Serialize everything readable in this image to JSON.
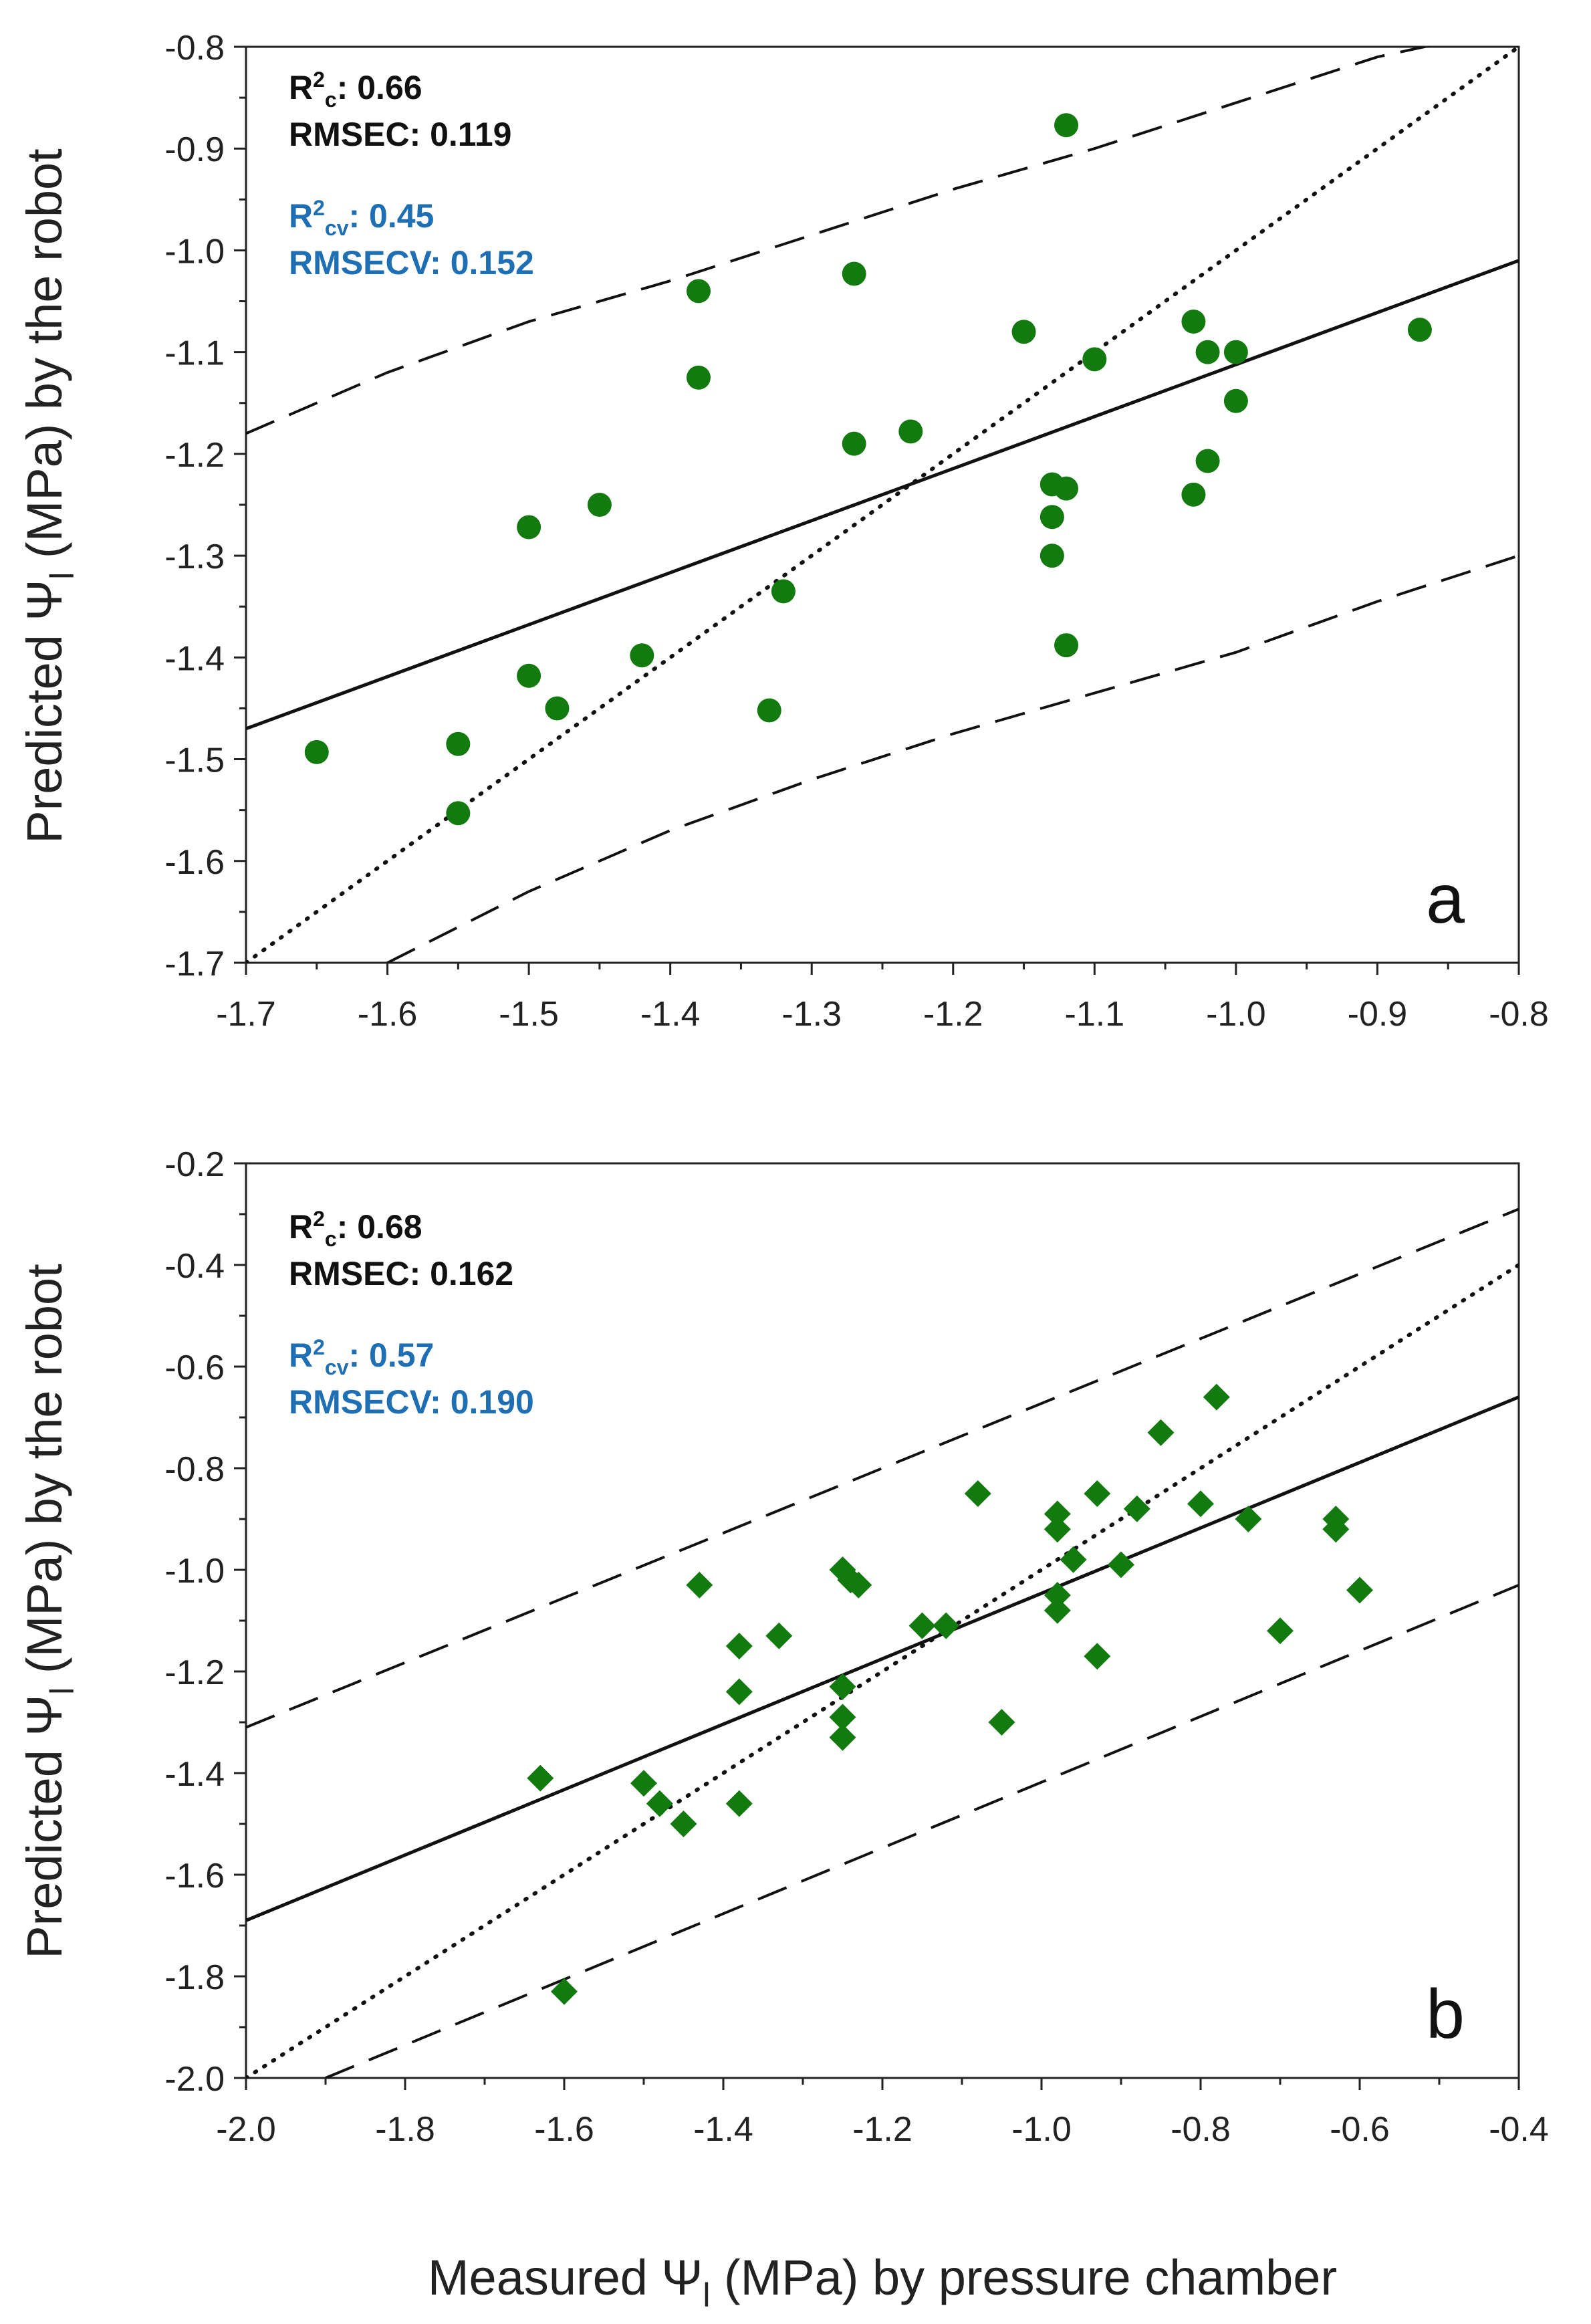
{
  "figure": {
    "shared_xlabel_main": "Measured Ψ",
    "shared_xlabel_sub": "l",
    "shared_xlabel_rest": " (MPa) by pressure chamber",
    "ylabel_main": "Predicted Ψ",
    "ylabel_sub": "l",
    "ylabel_rest": " (MPa) by the robot"
  },
  "colors": {
    "points": "#127a0e",
    "cv_text": "#1f6fb4",
    "stat_text": "#111111",
    "axis": "#222222"
  },
  "chart_data": [
    {
      "type": "scatter",
      "panel_label": "a",
      "marker": "circle",
      "xlim": [
        -1.7,
        -0.8
      ],
      "ylim": [
        -1.7,
        -0.8
      ],
      "xticks": [
        -1.7,
        -1.6,
        -1.5,
        -1.4,
        -1.3,
        -1.2,
        -1.1,
        -1.0,
        -0.9,
        -0.8
      ],
      "yticks": [
        -1.7,
        -1.6,
        -1.5,
        -1.4,
        -1.3,
        -1.2,
        -1.1,
        -1.0,
        -0.9,
        -0.8
      ],
      "xtick_labels": [
        "-1.7",
        "-1.6",
        "-1.5",
        "-1.4",
        "-1.3",
        "-1.2",
        "-1.1",
        "-1.0",
        "-0.9",
        "-0.8"
      ],
      "ytick_labels": [
        "-1.7",
        "-1.6",
        "-1.5",
        "-1.4",
        "-1.3",
        "-1.2",
        "-1.1",
        "-1.0",
        "-0.9",
        "-0.8"
      ],
      "stats": {
        "r2c_label": "R",
        "r2c_sup": "2",
        "r2c_sub": "c",
        "r2c_value": ": 0.66",
        "rmsec": "RMSEC: 0.119",
        "r2cv_label": "R",
        "r2cv_sup": "2",
        "r2cv_sub": "cv",
        "r2cv_value": ": 0.45",
        "rmsecv": "RMSECV: 0.152"
      },
      "regression_line": [
        [
          -1.7,
          -1.47
        ],
        [
          -0.8,
          -1.01
        ]
      ],
      "identity_line": [
        [
          -1.7,
          -1.7
        ],
        [
          -0.8,
          -0.8
        ]
      ],
      "upper_band": [
        [
          -1.7,
          -1.18
        ],
        [
          -1.6,
          -1.12
        ],
        [
          -1.5,
          -1.07
        ],
        [
          -1.4,
          -1.03
        ],
        [
          -1.3,
          -0.985
        ],
        [
          -1.2,
          -0.94
        ],
        [
          -1.1,
          -0.9
        ],
        [
          -1.0,
          -0.855
        ],
        [
          -0.9,
          -0.81
        ],
        [
          -0.85,
          -0.795
        ]
      ],
      "lower_band": [
        [
          -1.6,
          -1.7
        ],
        [
          -1.5,
          -1.63
        ],
        [
          -1.4,
          -1.57
        ],
        [
          -1.3,
          -1.52
        ],
        [
          -1.2,
          -1.475
        ],
        [
          -1.1,
          -1.435
        ],
        [
          -1.0,
          -1.395
        ],
        [
          -0.9,
          -1.345
        ],
        [
          -0.8,
          -1.3
        ]
      ],
      "points": [
        {
          "x": -1.65,
          "y": -1.493
        },
        {
          "x": -1.55,
          "y": -1.485
        },
        {
          "x": -1.55,
          "y": -1.553
        },
        {
          "x": -1.5,
          "y": -1.272
        },
        {
          "x": -1.5,
          "y": -1.418
        },
        {
          "x": -1.48,
          "y": -1.45
        },
        {
          "x": -1.45,
          "y": -1.25
        },
        {
          "x": -1.42,
          "y": -1.398
        },
        {
          "x": -1.38,
          "y": -1.04
        },
        {
          "x": -1.38,
          "y": -1.125
        },
        {
          "x": -1.33,
          "y": -1.452
        },
        {
          "x": -1.32,
          "y": -1.335
        },
        {
          "x": -1.27,
          "y": -1.023
        },
        {
          "x": -1.27,
          "y": -1.19
        },
        {
          "x": -1.23,
          "y": -1.178
        },
        {
          "x": -1.15,
          "y": -1.08
        },
        {
          "x": -1.13,
          "y": -1.23
        },
        {
          "x": -1.13,
          "y": -1.262
        },
        {
          "x": -1.13,
          "y": -1.3
        },
        {
          "x": -1.12,
          "y": -0.877
        },
        {
          "x": -1.12,
          "y": -1.234
        },
        {
          "x": -1.12,
          "y": -1.388
        },
        {
          "x": -1.1,
          "y": -1.107
        },
        {
          "x": -1.03,
          "y": -1.07
        },
        {
          "x": -1.03,
          "y": -1.24
        },
        {
          "x": -1.02,
          "y": -1.1
        },
        {
          "x": -1.02,
          "y": -1.207
        },
        {
          "x": -1.0,
          "y": -1.1
        },
        {
          "x": -1.0,
          "y": -1.148
        },
        {
          "x": -0.87,
          "y": -1.078
        }
      ]
    },
    {
      "type": "scatter",
      "panel_label": "b",
      "marker": "diamond",
      "xlim": [
        -2.0,
        -0.4
      ],
      "ylim": [
        -2.0,
        -0.2
      ],
      "xticks": [
        -2.0,
        -1.8,
        -1.6,
        -1.4,
        -1.2,
        -1.0,
        -0.8,
        -0.6,
        -0.4
      ],
      "yticks": [
        -2.0,
        -1.8,
        -1.6,
        -1.4,
        -1.2,
        -1.0,
        -0.8,
        -0.6,
        -0.4,
        -0.2
      ],
      "xtick_labels": [
        "-2.0",
        "-1.8",
        "-1.6",
        "-1.4",
        "-1.2",
        "-1.0",
        "-0.8",
        "-0.6",
        "-0.4"
      ],
      "ytick_labels": [
        "-2.0",
        "-1.8",
        "-1.6",
        "-1.4",
        "-1.2",
        "-1.0",
        "-0.8",
        "-0.6",
        "-0.4",
        "-0.2"
      ],
      "stats": {
        "r2c_label": "R",
        "r2c_sup": "2",
        "r2c_sub": "c",
        "r2c_value": ": 0.68",
        "rmsec": "RMSEC: 0.162",
        "r2cv_label": "R",
        "r2cv_sup": "2",
        "r2cv_sub": "cv",
        "r2cv_value": ": 0.57",
        "rmsecv": "RMSECV: 0.190"
      },
      "regression_line": [
        [
          -2.0,
          -1.69
        ],
        [
          -0.4,
          -0.66
        ]
      ],
      "identity_line": [
        [
          -2.0,
          -2.0
        ],
        [
          -0.4,
          -0.4
        ]
      ],
      "upper_band": [
        [
          -2.0,
          -1.31
        ],
        [
          -0.4,
          -0.29
        ]
      ],
      "lower_band": [
        [
          -1.9,
          -2.0
        ],
        [
          -0.4,
          -1.03
        ]
      ],
      "points": [
        {
          "x": -1.63,
          "y": -1.41
        },
        {
          "x": -1.6,
          "y": -1.83
        },
        {
          "x": -1.5,
          "y": -1.42
        },
        {
          "x": -1.48,
          "y": -1.46
        },
        {
          "x": -1.45,
          "y": -1.5
        },
        {
          "x": -1.43,
          "y": -1.03
        },
        {
          "x": -1.38,
          "y": -1.15
        },
        {
          "x": -1.38,
          "y": -1.24
        },
        {
          "x": -1.38,
          "y": -1.46
        },
        {
          "x": -1.33,
          "y": -1.13
        },
        {
          "x": -1.25,
          "y": -1.0
        },
        {
          "x": -1.25,
          "y": -1.23
        },
        {
          "x": -1.25,
          "y": -1.29
        },
        {
          "x": -1.25,
          "y": -1.33
        },
        {
          "x": -1.24,
          "y": -1.02
        },
        {
          "x": -1.23,
          "y": -1.03
        },
        {
          "x": -1.15,
          "y": -1.11
        },
        {
          "x": -1.12,
          "y": -1.11
        },
        {
          "x": -1.08,
          "y": -0.85
        },
        {
          "x": -1.05,
          "y": -1.3
        },
        {
          "x": -0.98,
          "y": -0.89
        },
        {
          "x": -0.98,
          "y": -0.92
        },
        {
          "x": -0.98,
          "y": -1.05
        },
        {
          "x": -0.98,
          "y": -1.08
        },
        {
          "x": -0.96,
          "y": -0.98
        },
        {
          "x": -0.93,
          "y": -0.85
        },
        {
          "x": -0.93,
          "y": -1.17
        },
        {
          "x": -0.9,
          "y": -0.99
        },
        {
          "x": -0.88,
          "y": -0.88
        },
        {
          "x": -0.85,
          "y": -0.73
        },
        {
          "x": -0.8,
          "y": -0.87
        },
        {
          "x": -0.78,
          "y": -0.66
        },
        {
          "x": -0.74,
          "y": -0.9
        },
        {
          "x": -0.7,
          "y": -1.12
        },
        {
          "x": -0.63,
          "y": -0.9
        },
        {
          "x": -0.63,
          "y": -0.92
        },
        {
          "x": -0.6,
          "y": -1.04
        }
      ]
    }
  ]
}
